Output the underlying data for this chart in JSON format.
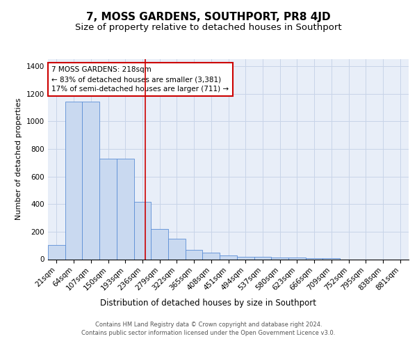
{
  "title": "7, MOSS GARDENS, SOUTHPORT, PR8 4JD",
  "subtitle": "Size of property relative to detached houses in Southport",
  "xlabel": "Distribution of detached houses by size in Southport",
  "ylabel": "Number of detached properties",
  "categories": [
    "21sqm",
    "64sqm",
    "107sqm",
    "150sqm",
    "193sqm",
    "236sqm",
    "279sqm",
    "322sqm",
    "365sqm",
    "408sqm",
    "451sqm",
    "494sqm",
    "537sqm",
    "580sqm",
    "623sqm",
    "666sqm",
    "709sqm",
    "752sqm",
    "795sqm",
    "838sqm",
    "881sqm"
  ],
  "bar_heights": [
    105,
    1140,
    1140,
    730,
    730,
    415,
    220,
    148,
    70,
    50,
    28,
    20,
    20,
    15,
    15,
    10,
    10,
    0,
    0,
    0,
    0
  ],
  "bar_color": "#c9d9f0",
  "bar_edge_color": "#5b8ed6",
  "annotation_text": "7 MOSS GARDENS: 218sqm\n← 83% of detached houses are smaller (3,381)\n17% of semi-detached houses are larger (711) →",
  "vline_x": 5.15,
  "vline_color": "#cc0000",
  "annotation_box_color": "#ffffff",
  "annotation_box_edge": "#cc0000",
  "ylim": [
    0,
    1450
  ],
  "yticks": [
    0,
    200,
    400,
    600,
    800,
    1000,
    1200,
    1400
  ],
  "grid_color": "#c8d4e8",
  "background_color": "#e8eef8",
  "footer": "Contains HM Land Registry data © Crown copyright and database right 2024.\nContains public sector information licensed under the Open Government Licence v3.0.",
  "title_fontsize": 11,
  "subtitle_fontsize": 9.5,
  "xlabel_fontsize": 8.5,
  "ylabel_fontsize": 8,
  "tick_fontsize": 7.5,
  "annotation_fontsize": 7.5,
  "footer_fontsize": 6
}
